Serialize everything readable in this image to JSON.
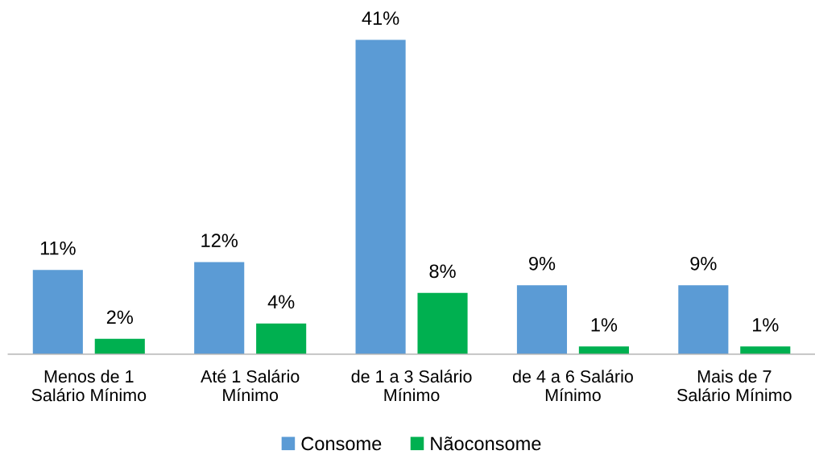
{
  "chart_data": {
    "type": "bar",
    "categories": [
      "Menos de 1\nSalário Mínimo",
      "Até 1 Salário\nMínimo",
      "de 1 a 3 Salário\nMínimo",
      "de 4 a 6 Salário\nMínimo",
      "Mais de 7\nSalário Mínimo"
    ],
    "series": [
      {
        "name": "Consome",
        "color": "#5b9bd5",
        "values": [
          11,
          12,
          41,
          9,
          9
        ],
        "value_labels": [
          "11%",
          "12%",
          "41%",
          "9%",
          "9%"
        ]
      },
      {
        "name": "Nãoconsome",
        "color": "#00b050",
        "values": [
          2,
          4,
          8,
          1,
          1
        ],
        "value_labels": [
          "2%",
          "4%",
          "8%",
          "1%",
          "1%"
        ]
      }
    ],
    "legend": "bottom",
    "grid": false
  }
}
